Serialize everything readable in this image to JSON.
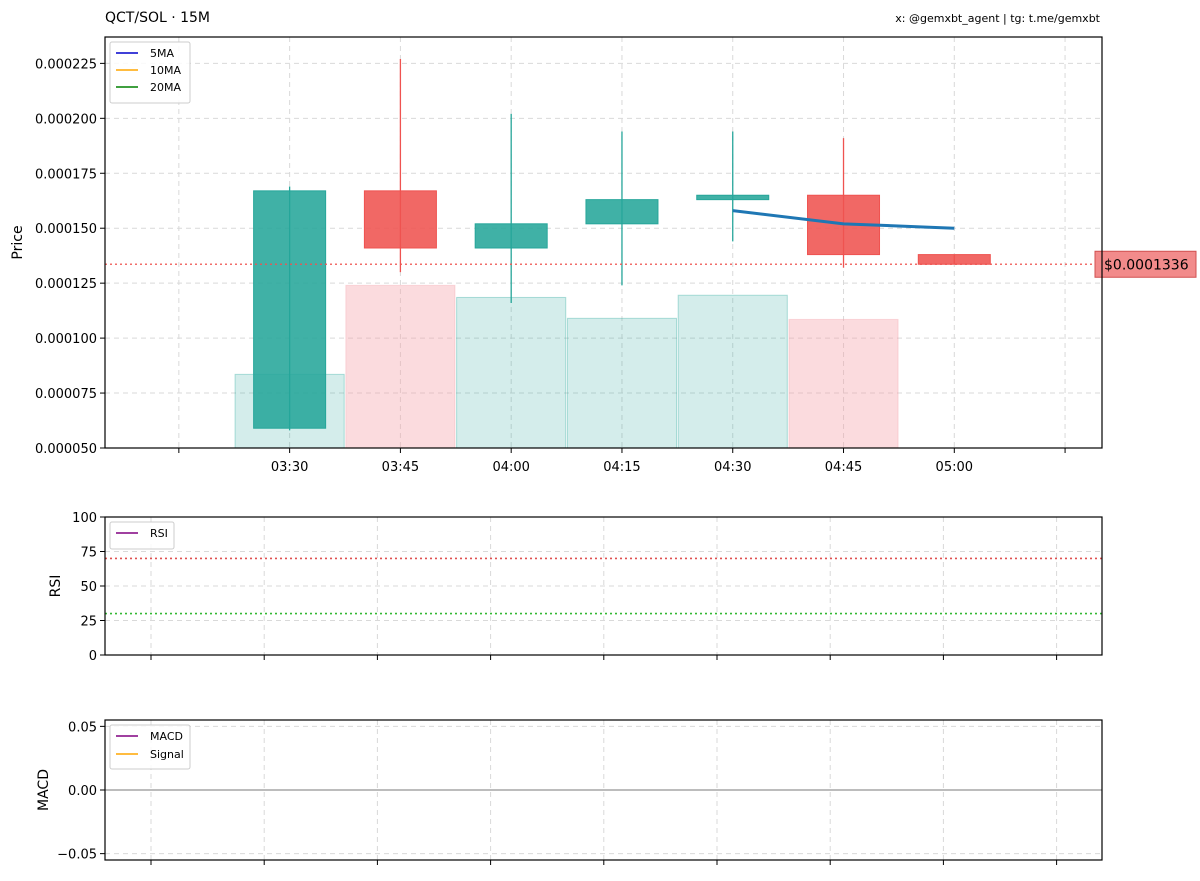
{
  "header": {
    "title": "QCT/SOL · 15M",
    "credit": "x: @gemxbt_agent | tg: t.me/gemxbt"
  },
  "colors": {
    "up": "#26a69a",
    "down": "#ef5350",
    "ma_line": "#1f77b4",
    "volume_up": "#26a69a",
    "volume_down": "#f4a0a8",
    "price_line": "#ef5350",
    "price_label_bg": "#f28b8b",
    "rsi_over": "#e05050",
    "rsi_under": "#33b833"
  },
  "chart_data": [
    {
      "id": "price",
      "type": "candlestick",
      "ylabel": "Price",
      "ylim": [
        5e-05,
        0.000237
      ],
      "yticks": [
        "0.000050",
        "0.000075",
        "0.000100",
        "0.000125",
        "0.000150",
        "0.000175",
        "0.000200",
        "0.000225"
      ],
      "ytick_values": [
        5e-05,
        7.5e-05,
        0.0001,
        0.000125,
        0.00015,
        0.000175,
        0.0002,
        0.000225
      ],
      "x_range": [
        "03:05",
        "05:20"
      ],
      "xticks": [
        "03:30",
        "03:45",
        "04:00",
        "04:15",
        "04:30",
        "04:45",
        "05:00"
      ],
      "grid": true,
      "legend": {
        "placement": "top-left",
        "entries": [
          {
            "name": "5MA",
            "color": "#0000cc"
          },
          {
            "name": "10MA",
            "color": "#ffa500"
          },
          {
            "name": "20MA",
            "color": "#008000"
          }
        ]
      },
      "candles": [
        {
          "time": "03:30",
          "open": 5.9e-05,
          "high": 0.000169,
          "low": 5.8e-05,
          "close": 0.000167,
          "volume": 8.35e-05
        },
        {
          "time": "03:45",
          "open": 0.000167,
          "high": 0.000227,
          "low": 0.00013,
          "close": 0.000141,
          "volume": 0.000124
        },
        {
          "time": "04:00",
          "open": 0.000141,
          "high": 0.000202,
          "low": 0.000116,
          "close": 0.000152,
          "volume": 0.0001185
        },
        {
          "time": "04:15",
          "open": 0.000152,
          "high": 0.000194,
          "low": 0.000124,
          "close": 0.000163,
          "volume": 0.000109
        },
        {
          "time": "04:30",
          "open": 0.000163,
          "high": 0.000194,
          "low": 0.000144,
          "close": 0.000165,
          "volume": 0.0001195
        },
        {
          "time": "04:45",
          "open": 0.000165,
          "high": 0.000191,
          "low": 0.000132,
          "close": 0.000138,
          "volume": 0.0001085
        },
        {
          "time": "05:00",
          "open": 0.000138,
          "high": 0.000138,
          "low": 0.0001336,
          "close": 0.0001336,
          "volume": null
        }
      ],
      "ma5": [
        {
          "time": "04:30",
          "value": 0.000158
        },
        {
          "time": "04:45",
          "value": 0.000152
        },
        {
          "time": "05:00",
          "value": 0.00015
        }
      ],
      "current_price": 0.0001336,
      "current_price_label": "$0.0001336"
    },
    {
      "id": "rsi",
      "type": "line",
      "ylabel": "RSI",
      "ylim": [
        0,
        100
      ],
      "yticks": [
        "0",
        "25",
        "50",
        "75",
        "100"
      ],
      "ytick_values": [
        0,
        25,
        50,
        75,
        100
      ],
      "overbought": 70,
      "oversold": 30,
      "grid": true,
      "legend": {
        "placement": "top-left",
        "entries": [
          {
            "name": "RSI",
            "color": "#800080"
          }
        ]
      },
      "series": []
    },
    {
      "id": "macd",
      "type": "line",
      "ylabel": "MACD",
      "ylim": [
        -0.055,
        0.055
      ],
      "yticks": [
        "−0.05",
        "0.00",
        "0.05"
      ],
      "ytick_values": [
        -0.05,
        0,
        0.05
      ],
      "zero_line": 0,
      "grid": true,
      "legend": {
        "placement": "top-left",
        "entries": [
          {
            "name": "MACD",
            "color": "#800080"
          },
          {
            "name": "Signal",
            "color": "#ffa500"
          }
        ]
      },
      "series": []
    }
  ]
}
